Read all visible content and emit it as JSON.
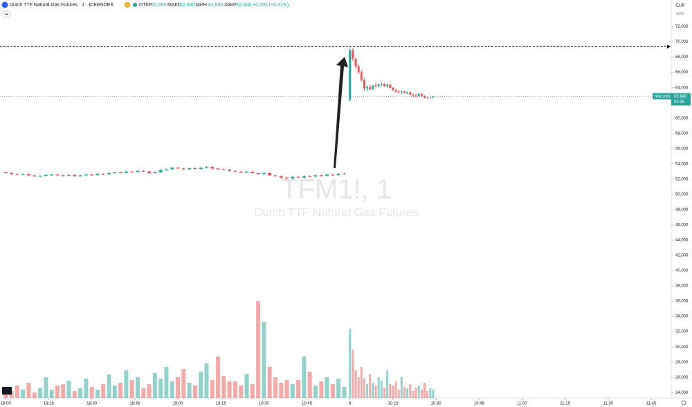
{
  "header": {
    "symbol_title": "Dutch TTF Natural Gas Futures · 1 · ICEENDEX",
    "badge": "D",
    "ohlc": [
      {
        "label": "ОТКР",
        "value": "62,695"
      },
      {
        "label": "МАКС",
        "value": "62,840"
      },
      {
        "label": "МИН",
        "value": "62,650"
      },
      {
        "label": "ЗАКР",
        "value": "62,840"
      }
    ],
    "change": "+0,295 (+0,47%)"
  },
  "watermark": {
    "line1": "TFM1!, 1",
    "line2": "Dutch TTF Natural Gas Futures"
  },
  "price_badge": {
    "symbol": "TFMJ2026",
    "price": "62,840",
    "countdown": "00:25"
  },
  "currency": "EUR",
  "unit": "MWh",
  "chart_data": {
    "type": "candlestick",
    "up_color": "#26a69a",
    "down_color": "#ef5350",
    "x": [
      0,
      2,
      4,
      6,
      8,
      10,
      12,
      14,
      16,
      18,
      20,
      22,
      24,
      26,
      28,
      30,
      32,
      34,
      36,
      38,
      40,
      42,
      44,
      46,
      48,
      50,
      52,
      54,
      56,
      58,
      60,
      62,
      64,
      66,
      68,
      70,
      72,
      74,
      76,
      78,
      80,
      82,
      84,
      86,
      88,
      90,
      92,
      94,
      96,
      98,
      100,
      102,
      104,
      106,
      108,
      110,
      112,
      114,
      116,
      118,
      120,
      121,
      122,
      123,
      124,
      125,
      126,
      127,
      128,
      129,
      130,
      131,
      132,
      133,
      134,
      135,
      136,
      137,
      138,
      139,
      140,
      141,
      142,
      143,
      144,
      145,
      146,
      147,
      148,
      149
    ],
    "open": [
      52900,
      52800,
      52700,
      52600,
      52650,
      52500,
      52400,
      52450,
      52550,
      52600,
      52500,
      52450,
      52550,
      52400,
      52500,
      52600,
      52550,
      52700,
      52650,
      52800,
      52900,
      52850,
      53000,
      52950,
      53100,
      53000,
      52800,
      52900,
      53200,
      53300,
      53500,
      53400,
      53300,
      53450,
      53350,
      53500,
      53600,
      53400,
      53300,
      53250,
      53100,
      53000,
      52900,
      52950,
      52800,
      52700,
      52800,
      52500,
      52400,
      52200,
      52100,
      52300,
      52200,
      52400,
      52350,
      52500,
      52450,
      52600,
      52550,
      52700,
      62400,
      68900,
      67800,
      66800,
      66000,
      65000,
      63900,
      64100,
      63800,
      64300,
      64200,
      64400,
      64500,
      64200,
      64400,
      64000,
      63700,
      63500,
      63400,
      63500,
      63300,
      63400,
      63100,
      63000,
      62900,
      63200,
      62900,
      62700,
      62650,
      62695
    ],
    "high": [
      53000,
      52900,
      52800,
      52750,
      52750,
      52600,
      52550,
      52650,
      52700,
      52700,
      52600,
      52650,
      52650,
      52600,
      52700,
      52700,
      52800,
      52800,
      52900,
      53000,
      53000,
      53100,
      53100,
      53200,
      53200,
      53100,
      53000,
      53300,
      53400,
      53600,
      53600,
      53500,
      53550,
      53550,
      53600,
      53700,
      53700,
      53500,
      53400,
      53350,
      53200,
      53100,
      53050,
      53050,
      52900,
      52900,
      52900,
      52600,
      52500,
      52300,
      52400,
      52400,
      52500,
      52500,
      52600,
      52600,
      52700,
      52700,
      52800,
      52850,
      69400,
      69200,
      68000,
      67100,
      66300,
      65200,
      64300,
      64400,
      64400,
      64600,
      64500,
      64700,
      64600,
      64500,
      64500,
      64100,
      63900,
      63700,
      63600,
      63600,
      63500,
      63500,
      63300,
      63200,
      63300,
      63300,
      63000,
      62800,
      62900,
      62840
    ],
    "low": [
      52700,
      52600,
      52500,
      52500,
      52400,
      52300,
      52300,
      52350,
      52450,
      52400,
      52350,
      52350,
      52300,
      52300,
      52400,
      52450,
      52450,
      52550,
      52550,
      52700,
      52750,
      52750,
      52850,
      52850,
      52900,
      52700,
      52700,
      52800,
      53100,
      53200,
      53300,
      53200,
      53200,
      53250,
      53250,
      53400,
      53300,
      53200,
      53150,
      53000,
      52900,
      52800,
      52800,
      52700,
      52600,
      52600,
      52400,
      52300,
      52100,
      52000,
      52000,
      52100,
      52100,
      52250,
      52250,
      52350,
      52350,
      52450,
      52450,
      52600,
      62200,
      67500,
      66500,
      65800,
      64800,
      63600,
      63500,
      63700,
      63700,
      64000,
      63900,
      64200,
      64100,
      64000,
      63900,
      63500,
      63300,
      63200,
      63100,
      63200,
      63100,
      63000,
      62800,
      62600,
      62800,
      62800,
      62600,
      62500,
      62600,
      62650
    ],
    "close": [
      52800,
      52700,
      52600,
      52650,
      52500,
      52400,
      52450,
      52550,
      52600,
      52500,
      52450,
      52550,
      52400,
      52500,
      52600,
      52550,
      52700,
      52650,
      52800,
      52900,
      52850,
      53000,
      52950,
      53100,
      53000,
      52800,
      52900,
      53200,
      53300,
      53500,
      53400,
      53300,
      53450,
      53350,
      53500,
      53600,
      53400,
      53300,
      53250,
      53100,
      53000,
      52900,
      52950,
      52800,
      52700,
      52800,
      52500,
      52400,
      52200,
      52100,
      52300,
      52200,
      52400,
      52350,
      52500,
      52450,
      52600,
      52550,
      52700,
      52750,
      68900,
      67800,
      66800,
      66000,
      65000,
      63900,
      64100,
      63800,
      64300,
      64200,
      64400,
      64500,
      64200,
      64400,
      64000,
      63700,
      63500,
      63400,
      63500,
      63300,
      63400,
      63100,
      63000,
      62900,
      63200,
      62900,
      62700,
      62650,
      62700,
      62840
    ],
    "volume": [
      14,
      10,
      18,
      12,
      22,
      8,
      15,
      30,
      12,
      18,
      20,
      25,
      10,
      14,
      28,
      16,
      12,
      20,
      34,
      18,
      22,
      40,
      26,
      30,
      14,
      20,
      36,
      28,
      45,
      24,
      30,
      42,
      22,
      18,
      38,
      50,
      26,
      60,
      32,
      24,
      24,
      18,
      35,
      20,
      140,
      110,
      45,
      30,
      22,
      26,
      20,
      26,
      60,
      38,
      18,
      24,
      30,
      20,
      28,
      16,
      100,
      70,
      40,
      30,
      45,
      28,
      20,
      35,
      22,
      18,
      30,
      25,
      15,
      40,
      20,
      18,
      24,
      12,
      30,
      16,
      14,
      20,
      10,
      15,
      18,
      12,
      22,
      10,
      14,
      12
    ],
    "vlim": [
      0,
      150
    ],
    "xlim": [
      -2,
      232
    ],
    "xticks": [
      {
        "value": 0,
        "label": "18:00"
      },
      {
        "value": 15,
        "label": "18:15"
      },
      {
        "value": 30,
        "label": "18:30"
      },
      {
        "value": 45,
        "label": "18:45"
      },
      {
        "value": 60,
        "label": "19:00"
      },
      {
        "value": 75,
        "label": "19:15"
      },
      {
        "value": 90,
        "label": "19:30"
      },
      {
        "value": 105,
        "label": "19:45"
      },
      {
        "value": 120,
        "label": "9"
      },
      {
        "value": 135,
        "label": "10:15"
      },
      {
        "value": 150,
        "label": "10:30"
      },
      {
        "value": 165,
        "label": "10:45"
      },
      {
        "value": 180,
        "label": "11:00"
      },
      {
        "value": 195,
        "label": "11:15"
      },
      {
        "value": 210,
        "label": "11:30"
      },
      {
        "value": 225,
        "label": "11:45"
      }
    ],
    "ylim": [
      23300,
      75500
    ],
    "yticks": [
      {
        "value": 24000,
        "label": "24,000"
      },
      {
        "value": 26000,
        "label": "26,000"
      },
      {
        "value": 28000,
        "label": "28,000"
      },
      {
        "value": 30000,
        "label": "30,000"
      },
      {
        "value": 32000,
        "label": "32,000"
      },
      {
        "value": 34000,
        "label": "34,000"
      },
      {
        "value": 36000,
        "label": "36,000"
      },
      {
        "value": 38000,
        "label": "38,000"
      },
      {
        "value": 40000,
        "label": "40,000"
      },
      {
        "value": 42000,
        "label": "42,000"
      },
      {
        "value": 44000,
        "label": "44,000"
      },
      {
        "value": 46000,
        "label": "46,000"
      },
      {
        "value": 48000,
        "label": "48,000"
      },
      {
        "value": 50000,
        "label": "50,000"
      },
      {
        "value": 52000,
        "label": "52,000"
      },
      {
        "value": 54000,
        "label": "54,000"
      },
      {
        "value": 56000,
        "label": "56,000"
      },
      {
        "value": 58000,
        "label": "58,000"
      },
      {
        "value": 60000,
        "label": "60,000"
      },
      {
        "value": 62000,
        "label": "62,000"
      },
      {
        "value": 64000,
        "label": "64,000"
      },
      {
        "value": 66000,
        "label": "66,000"
      },
      {
        "value": 68000,
        "label": "68,000"
      },
      {
        "value": 70000,
        "label": "70,000"
      },
      {
        "value": 72000,
        "label": "72,000"
      }
    ],
    "grid": false
  }
}
